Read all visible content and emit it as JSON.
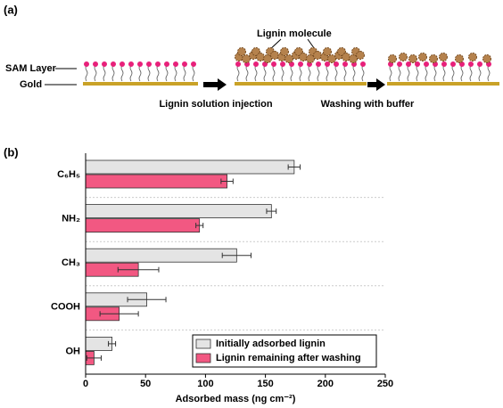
{
  "diagram": {
    "panel_label": "(a)",
    "sam_label": "SAM Layer",
    "gold_label": "Gold",
    "molecule_label": "Lignin molecule",
    "step1_label": "Lignin solution injection",
    "step2_label": "Washing with buffer"
  },
  "chart_data": {
    "type": "hbar",
    "panel_label": "(b)",
    "categories": [
      "C₆H₅",
      "NH₂",
      "CH₃",
      "COOH",
      "OH"
    ],
    "series": [
      {
        "name": "Initially adsorbed lignin",
        "color": "#e4e4e4",
        "values": [
          174,
          155,
          126,
          51,
          22
        ],
        "errors": [
          5,
          4,
          12,
          16,
          3
        ]
      },
      {
        "name": "Lignin remaining after washing",
        "color": "#f25882",
        "values": [
          118,
          95,
          44,
          28,
          7
        ],
        "errors": [
          5,
          3,
          17,
          16,
          6
        ]
      }
    ],
    "xlabel": "Adsorbed mass (ng cm⁻²)",
    "xlim": [
      0,
      250
    ],
    "xticks": [
      0,
      50,
      100,
      150,
      200,
      250
    ],
    "legend": "lower right"
  }
}
